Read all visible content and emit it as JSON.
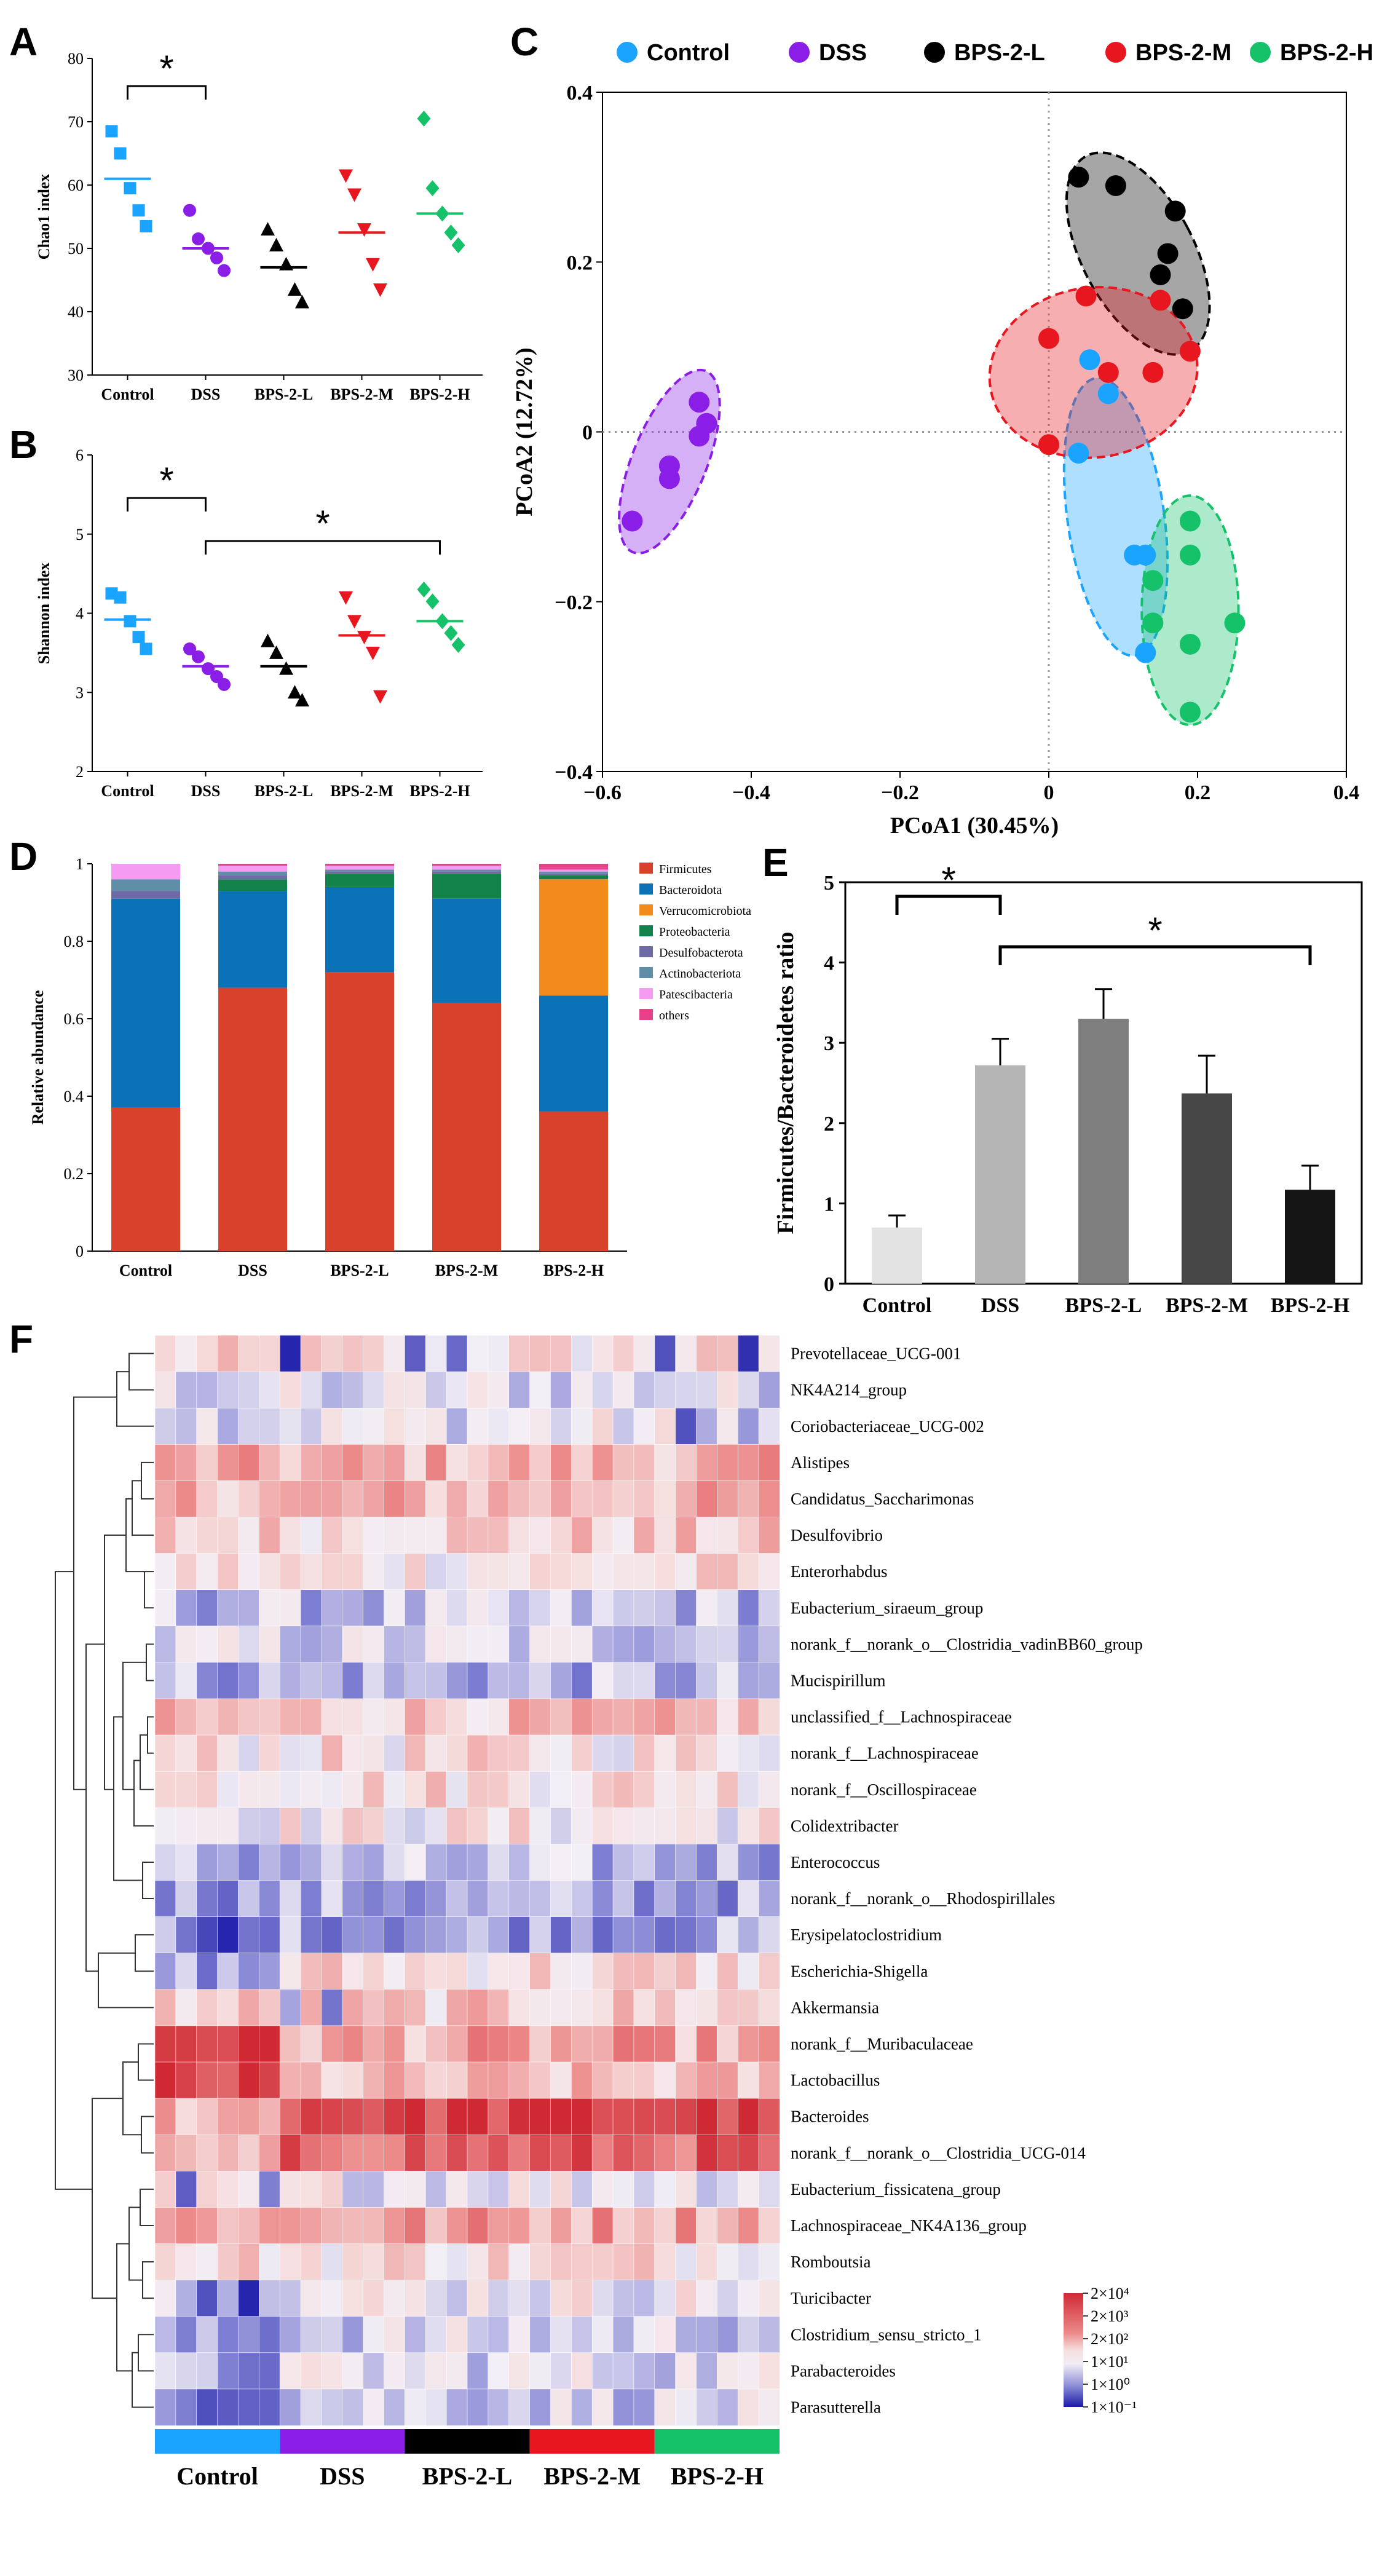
{
  "colors": {
    "control": "#1aa3ff",
    "dss": "#8a1ee6",
    "bps_l": "#000000",
    "bps_m": "#e8171f",
    "bps_h": "#15c26a"
  },
  "panels": {
    "A": "A",
    "B": "B",
    "C": "C",
    "D": "D",
    "E": "E",
    "F": "F"
  },
  "chart_data": [
    {
      "id": "A",
      "type": "scatter",
      "ylabel": "Chao1 index",
      "ylim": [
        30,
        80
      ],
      "yticks": [
        "30",
        "40",
        "50",
        "60",
        "70",
        "80"
      ],
      "categories": [
        "Control",
        "DSS",
        "BPS-2-L",
        "BPS-2-M",
        "BPS-2-H"
      ],
      "markers": [
        "square",
        "circle",
        "triangle-up",
        "triangle-down",
        "diamond"
      ],
      "points": [
        [
          68.5,
          65.0,
          59.5,
          56.0,
          53.5
        ],
        [
          56.0,
          51.5,
          50.0,
          48.5,
          46.5
        ],
        [
          53.0,
          50.5,
          47.5,
          43.5,
          41.5
        ],
        [
          61.5,
          58.5,
          53.0,
          47.5,
          43.5
        ],
        [
          70.5,
          59.5,
          55.5,
          52.5,
          50.5
        ]
      ],
      "means": [
        61,
        50,
        47,
        52.5,
        55.5
      ],
      "significance": [
        {
          "from": 0,
          "to": 1,
          "label": "*"
        }
      ]
    },
    {
      "id": "B",
      "type": "scatter",
      "ylabel": "Shannon index",
      "ylim": [
        2,
        6
      ],
      "yticks": [
        "2",
        "3",
        "4",
        "5",
        "6"
      ],
      "categories": [
        "Control",
        "DSS",
        "BPS-2-L",
        "BPS-2-M",
        "BPS-2-H"
      ],
      "markers": [
        "square",
        "circle",
        "triangle-up",
        "triangle-down",
        "diamond"
      ],
      "points": [
        [
          4.25,
          4.2,
          3.9,
          3.7,
          3.55
        ],
        [
          3.55,
          3.45,
          3.3,
          3.2,
          3.1
        ],
        [
          3.65,
          3.5,
          3.3,
          3.0,
          2.9
        ],
        [
          4.2,
          3.9,
          3.7,
          3.5,
          2.95
        ],
        [
          4.3,
          4.15,
          3.9,
          3.75,
          3.6
        ]
      ],
      "means": [
        3.92,
        3.33,
        3.33,
        3.72,
        3.9
      ],
      "significance": [
        {
          "from": 0,
          "to": 1,
          "label": "*"
        },
        {
          "from": 1,
          "to": 4,
          "label": "*"
        }
      ]
    },
    {
      "id": "C",
      "type": "scatter",
      "xlabel": "PCoA1 (30.45%)",
      "ylabel": "PCoA2 (12.72%)",
      "xlim": [
        -0.6,
        0.4
      ],
      "ylim": [
        -0.4,
        0.4
      ],
      "xticks": [
        "−0.6",
        "−0.4",
        "−0.2",
        "0",
        "0.2",
        "0.4"
      ],
      "yticks": [
        "−0.4",
        "−0.2",
        "0",
        "0.2",
        "0.4"
      ],
      "legend": [
        "Control",
        "DSS",
        "BPS-2-L",
        "BPS-2-M",
        "BPS-2-H"
      ],
      "series": [
        {
          "name": "Control",
          "ellipse": {
            "cx": 0.09,
            "cy": -0.1,
            "rx": 0.065,
            "ry": 0.165,
            "angle": -8
          },
          "x": [
            0.055,
            0.08,
            0.04,
            0.115,
            0.13,
            0.13
          ],
          "y": [
            0.085,
            0.045,
            -0.025,
            -0.145,
            -0.145,
            -0.26
          ]
        },
        {
          "name": "DSS",
          "ellipse": {
            "cx": -0.51,
            "cy": -0.035,
            "rx": 0.05,
            "ry": 0.115,
            "angle": 22
          },
          "x": [
            -0.47,
            -0.46,
            -0.47,
            -0.51,
            -0.51,
            -0.56
          ],
          "y": [
            0.035,
            0.01,
            -0.005,
            -0.04,
            -0.055,
            -0.105
          ]
        },
        {
          "name": "BPS-2-L",
          "ellipse": {
            "cx": 0.12,
            "cy": 0.21,
            "rx": 0.075,
            "ry": 0.13,
            "angle": -28
          },
          "x": [
            0.04,
            0.09,
            0.17,
            0.16,
            0.15,
            0.18
          ],
          "y": [
            0.3,
            0.29,
            0.26,
            0.21,
            0.185,
            0.145
          ]
        },
        {
          "name": "BPS-2-M",
          "ellipse": {
            "cx": 0.06,
            "cy": 0.07,
            "rx": 0.14,
            "ry": 0.1,
            "angle": -8
          },
          "x": [
            0.05,
            0.15,
            0.0,
            0.19,
            0.08,
            0.14,
            0.0
          ],
          "y": [
            0.16,
            0.155,
            0.11,
            0.095,
            0.07,
            0.07,
            -0.015
          ]
        },
        {
          "name": "BPS-2-H",
          "ellipse": {
            "cx": 0.19,
            "cy": -0.21,
            "rx": 0.065,
            "ry": 0.135,
            "angle": 0
          },
          "x": [
            0.19,
            0.19,
            0.14,
            0.14,
            0.25,
            0.19,
            0.19
          ],
          "y": [
            -0.105,
            -0.145,
            -0.175,
            -0.225,
            -0.225,
            -0.25,
            -0.33
          ]
        }
      ]
    },
    {
      "id": "D",
      "type": "bar",
      "stacked": true,
      "ylabel": "Relative abundance",
      "ylim": [
        0,
        1
      ],
      "yticks": [
        "0",
        "0.2",
        "0.4",
        "0.6",
        "0.8",
        "1"
      ],
      "categories": [
        "Control",
        "DSS",
        "BPS-2-L",
        "BPS-2-M",
        "BPS-2-H"
      ],
      "series": [
        {
          "name": "Firmicutes",
          "color": "#d8412b",
          "values": [
            0.37,
            0.68,
            0.72,
            0.64,
            0.36
          ]
        },
        {
          "name": "Bacteroidota",
          "color": "#0c72b8",
          "values": [
            0.54,
            0.25,
            0.22,
            0.27,
            0.3
          ]
        },
        {
          "name": "Verrucomicrobiota",
          "color": "#f28a1c",
          "values": [
            0.0,
            0.0,
            0.0,
            0.0,
            0.3
          ]
        },
        {
          "name": "Proteobacteria",
          "color": "#12824a",
          "values": [
            0.0,
            0.03,
            0.035,
            0.065,
            0.01
          ]
        },
        {
          "name": "Desulfobacterota",
          "color": "#6e6aa6",
          "values": [
            0.02,
            0.01,
            0.005,
            0.005,
            0.005
          ]
        },
        {
          "name": "Actinobacteriota",
          "color": "#5f8fa8",
          "values": [
            0.03,
            0.01,
            0.005,
            0.005,
            0.005
          ]
        },
        {
          "name": "Patescibacteria",
          "color": "#f49cf2",
          "values": [
            0.04,
            0.015,
            0.01,
            0.01,
            0.005
          ]
        },
        {
          "name": "others",
          "color": "#e8418a",
          "values": [
            0.0,
            0.005,
            0.005,
            0.005,
            0.005
          ]
        }
      ]
    },
    {
      "id": "E",
      "type": "bar",
      "ylabel": "Firmicutes/Bacteroidetes ratio",
      "ylim": [
        0,
        5
      ],
      "yticks": [
        "0",
        "1",
        "2",
        "3",
        "4",
        "5"
      ],
      "categories": [
        "Control",
        "DSS",
        "BPS-2-L",
        "BPS-2-M",
        "BPS-2-H"
      ],
      "values": [
        0.7,
        2.72,
        3.3,
        2.37,
        1.17
      ],
      "errors": [
        0.15,
        0.33,
        0.37,
        0.47,
        0.3
      ],
      "bar_colors": [
        "#e3e3e3",
        "#b5b5b5",
        "#7f7f7f",
        "#474747",
        "#141414"
      ],
      "significance": [
        {
          "from": 0,
          "to": 1,
          "label": "*"
        },
        {
          "from": 1,
          "to": 4,
          "label": "*"
        }
      ]
    },
    {
      "id": "F",
      "type": "heatmap",
      "group_labels": [
        "Control",
        "DSS",
        "BPS-2-L",
        "BPS-2-M",
        "BPS-2-H"
      ],
      "samples_per_group": 6,
      "rows": [
        "Prevotellaceae_UCG-001",
        "NK4A214_group",
        "Coriobacteriaceae_UCG-002",
        "Alistipes",
        "Candidatus_Saccharimonas",
        "Desulfovibrio",
        "Enterorhabdus",
        "Eubacterium_siraeum_group",
        "norank_f__norank_o__Clostridia_vadinBB60_group",
        "Mucispirillum",
        "unclassified_f__Lachnospiraceae",
        "norank_f__Lachnospiraceae",
        "norank_f__Oscillospiraceae",
        "Colidextribacter",
        "Enterococcus",
        "norank_f__norank_o__Rhodospirillales",
        "Erysipelatoclostridium",
        "Escherichia-Shigella",
        "Akkermansia",
        "norank_f__Muribaculaceae",
        "Lactobacillus",
        "Bacteroides",
        "norank_f__norank_o__Clostridia_UCG-014",
        "Eubacterium_fissicatena_group",
        "Lachnospiraceae_NK4A136_group",
        "Romboutsia",
        "Turicibacter",
        "Clostridium_sensu_stricto_1",
        "Parabacteroides",
        "Parasutterella"
      ],
      "row_levels": [
        2.1,
        1.7,
        1.8,
        2.6,
        2.6,
        2.3,
        2.1,
        1.4,
        1.6,
        1.3,
        2.4,
        2.1,
        2.2,
        2.0,
        1.3,
        1.2,
        1.2,
        2.2,
        2.3,
        3.3,
        3.0,
        3.5,
        3.1,
        1.9,
        2.8,
        2.2,
        1.9,
        1.6,
        1.7,
        1.6
      ],
      "color_scale": [
        "2×10⁴",
        "2×10³",
        "2×10²",
        "1×10¹",
        "1×10⁰",
        "1×10⁻¹"
      ]
    }
  ]
}
